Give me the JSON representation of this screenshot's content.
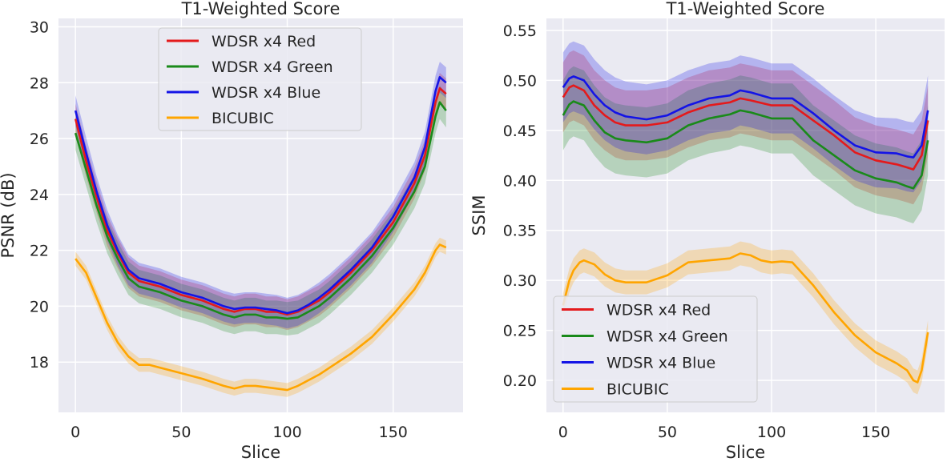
{
  "chart_data": [
    {
      "type": "line",
      "title": "T1-Weighted Score",
      "xlabel": "Slice",
      "ylabel": "PSNR (dB)",
      "xlim": [
        -8,
        183
      ],
      "ylim": [
        16.2,
        30.3
      ],
      "xticks": [
        0,
        50,
        100,
        150
      ],
      "yticks": [
        18,
        20,
        22,
        24,
        26,
        28,
        30
      ],
      "grid": true,
      "legend_position": "upper-center",
      "series": [
        {
          "name": "WDSR x4 Red",
          "color": "#e41a1c",
          "band": 0.55,
          "x": [
            0,
            5,
            10,
            15,
            20,
            25,
            30,
            35,
            40,
            50,
            60,
            70,
            75,
            80,
            85,
            90,
            95,
            100,
            105,
            110,
            115,
            120,
            130,
            140,
            150,
            160,
            165,
            170,
            172,
            175
          ],
          "y": [
            26.7,
            25.2,
            23.9,
            22.7,
            21.9,
            21.2,
            20.9,
            20.8,
            20.7,
            20.4,
            20.2,
            19.9,
            19.8,
            19.9,
            19.9,
            19.8,
            19.8,
            19.7,
            19.8,
            20.0,
            20.2,
            20.5,
            21.2,
            22.0,
            23.0,
            24.4,
            25.4,
            27.3,
            27.8,
            27.6
          ]
        },
        {
          "name": "WDSR x4 Green",
          "color": "#1a8a1a",
          "band": 0.6,
          "x": [
            0,
            5,
            10,
            15,
            20,
            25,
            30,
            35,
            40,
            50,
            60,
            70,
            75,
            80,
            85,
            90,
            95,
            100,
            105,
            110,
            115,
            120,
            130,
            140,
            150,
            160,
            165,
            170,
            172,
            175
          ],
          "y": [
            26.2,
            24.9,
            23.6,
            22.5,
            21.7,
            21.0,
            20.7,
            20.6,
            20.5,
            20.2,
            20.0,
            19.7,
            19.6,
            19.7,
            19.7,
            19.6,
            19.6,
            19.55,
            19.6,
            19.8,
            20.0,
            20.3,
            21.0,
            21.8,
            22.8,
            24.1,
            25.0,
            26.8,
            27.3,
            27.0
          ]
        },
        {
          "name": "WDSR x4 Blue",
          "color": "#1414e6",
          "band": 0.55,
          "x": [
            0,
            5,
            10,
            15,
            20,
            25,
            30,
            35,
            40,
            50,
            60,
            70,
            75,
            80,
            85,
            90,
            95,
            100,
            105,
            110,
            115,
            120,
            130,
            140,
            150,
            160,
            165,
            170,
            172,
            175
          ],
          "y": [
            27.0,
            25.5,
            24.1,
            22.9,
            22.0,
            21.3,
            21.0,
            20.9,
            20.8,
            20.5,
            20.3,
            20.0,
            19.9,
            19.95,
            19.95,
            19.9,
            19.85,
            19.75,
            19.85,
            20.05,
            20.3,
            20.6,
            21.3,
            22.1,
            23.2,
            24.6,
            25.7,
            27.7,
            28.2,
            28.0
          ]
        },
        {
          "name": "BICUBIC",
          "color": "#ffa500",
          "band": 0.25,
          "x": [
            0,
            5,
            10,
            15,
            20,
            25,
            30,
            35,
            40,
            50,
            60,
            70,
            75,
            80,
            85,
            90,
            95,
            100,
            105,
            110,
            115,
            120,
            130,
            140,
            150,
            160,
            165,
            170,
            172,
            175
          ],
          "y": [
            21.7,
            21.2,
            20.3,
            19.4,
            18.7,
            18.2,
            17.9,
            17.9,
            17.8,
            17.6,
            17.4,
            17.15,
            17.05,
            17.15,
            17.15,
            17.1,
            17.05,
            17.0,
            17.15,
            17.35,
            17.55,
            17.8,
            18.3,
            18.9,
            19.7,
            20.6,
            21.2,
            22.0,
            22.2,
            22.1
          ]
        }
      ]
    },
    {
      "type": "line",
      "title": "T1-Weighted Score",
      "xlabel": "Slice",
      "ylabel": "SSIM",
      "xlim": [
        -8,
        183
      ],
      "ylim": [
        0.168,
        0.562
      ],
      "xticks": [
        0,
        50,
        100,
        150
      ],
      "yticks": [
        0.2,
        0.25,
        0.3,
        0.35,
        0.4,
        0.45,
        0.5,
        0.55
      ],
      "grid": true,
      "legend_position": "lower-left",
      "series": [
        {
          "name": "WDSR x4 Red",
          "color": "#e41a1c",
          "band": 0.035,
          "x": [
            0,
            3,
            5,
            10,
            15,
            20,
            25,
            30,
            40,
            50,
            60,
            70,
            80,
            85,
            90,
            100,
            110,
            120,
            130,
            140,
            150,
            160,
            165,
            168,
            172,
            175
          ],
          "y": [
            0.483,
            0.493,
            0.495,
            0.49,
            0.475,
            0.465,
            0.458,
            0.455,
            0.455,
            0.458,
            0.468,
            0.475,
            0.478,
            0.482,
            0.48,
            0.475,
            0.475,
            0.46,
            0.445,
            0.428,
            0.42,
            0.416,
            0.413,
            0.411,
            0.425,
            0.46
          ]
        },
        {
          "name": "WDSR x4 Green",
          "color": "#1a8a1a",
          "band": 0.035,
          "x": [
            0,
            3,
            5,
            10,
            15,
            20,
            25,
            30,
            40,
            50,
            60,
            70,
            80,
            85,
            90,
            100,
            110,
            120,
            130,
            140,
            150,
            160,
            165,
            168,
            172,
            175
          ],
          "y": [
            0.465,
            0.476,
            0.479,
            0.475,
            0.46,
            0.448,
            0.442,
            0.44,
            0.438,
            0.442,
            0.455,
            0.462,
            0.466,
            0.47,
            0.468,
            0.462,
            0.462,
            0.44,
            0.425,
            0.41,
            0.402,
            0.398,
            0.394,
            0.392,
            0.405,
            0.44
          ]
        },
        {
          "name": "WDSR x4 Blue",
          "color": "#1414e6",
          "band": 0.035,
          "x": [
            0,
            3,
            5,
            10,
            15,
            20,
            25,
            30,
            40,
            50,
            60,
            70,
            80,
            85,
            90,
            100,
            110,
            120,
            130,
            140,
            150,
            160,
            165,
            168,
            172,
            175
          ],
          "y": [
            0.493,
            0.502,
            0.504,
            0.5,
            0.486,
            0.475,
            0.468,
            0.464,
            0.461,
            0.465,
            0.475,
            0.482,
            0.485,
            0.49,
            0.488,
            0.482,
            0.482,
            0.467,
            0.45,
            0.435,
            0.428,
            0.427,
            0.424,
            0.423,
            0.435,
            0.47
          ]
        },
        {
          "name": "BICUBIC",
          "color": "#ffa500",
          "band": 0.012,
          "x": [
            0,
            3,
            5,
            8,
            10,
            15,
            20,
            25,
            30,
            40,
            50,
            60,
            70,
            80,
            85,
            90,
            95,
            100,
            105,
            110,
            120,
            130,
            140,
            150,
            160,
            165,
            168,
            170,
            172,
            175
          ],
          "y": [
            0.275,
            0.3,
            0.31,
            0.318,
            0.32,
            0.316,
            0.306,
            0.3,
            0.298,
            0.298,
            0.305,
            0.318,
            0.32,
            0.322,
            0.327,
            0.325,
            0.32,
            0.318,
            0.319,
            0.318,
            0.295,
            0.268,
            0.245,
            0.228,
            0.217,
            0.21,
            0.2,
            0.198,
            0.21,
            0.248
          ]
        }
      ]
    }
  ]
}
